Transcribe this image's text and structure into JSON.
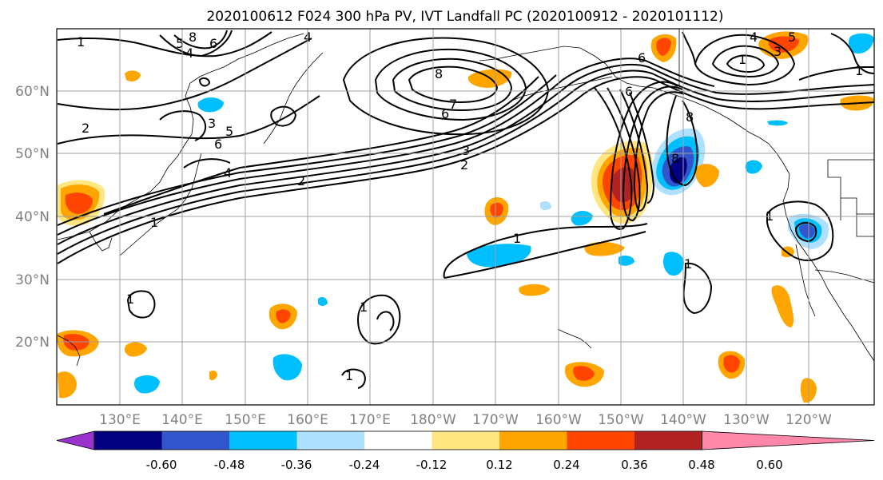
{
  "title": "2020100612 F024 300 hPa PV, IVT Landfall PC (2020100912 - 2020101112)",
  "map": {
    "lat_ticks": [
      "60°N",
      "50°N",
      "40°N",
      "30°N",
      "20°N"
    ],
    "lon_ticks": [
      "130°E",
      "140°E",
      "150°E",
      "160°E",
      "170°E",
      "180°W",
      "170°W",
      "160°W",
      "150°W",
      "140°W",
      "130°W",
      "120°W"
    ],
    "grid": true,
    "contour_labels": [
      "1",
      "8",
      "6",
      "5",
      "4",
      "4",
      "2",
      "3",
      "6",
      "5",
      "4",
      "2",
      "1",
      "8",
      "6",
      "7",
      "3",
      "2",
      "1",
      "6",
      "8",
      "8",
      "6",
      "4",
      "5",
      "3",
      "1",
      "1",
      "1",
      "1",
      "1",
      "1",
      "1"
    ]
  },
  "colorbar": {
    "ticks": [
      "-0.60",
      "-0.48",
      "-0.36",
      "-0.24",
      "-0.12",
      "0.12",
      "0.24",
      "0.36",
      "0.48",
      "0.60"
    ],
    "colors": [
      "#9933cc",
      "#000080",
      "#3355cc",
      "#00bfff",
      "#b0e0ff",
      "#ffffff",
      "#ffe680",
      "#ffa500",
      "#ff4500",
      "#b22222",
      "#ff88aa"
    ]
  }
}
